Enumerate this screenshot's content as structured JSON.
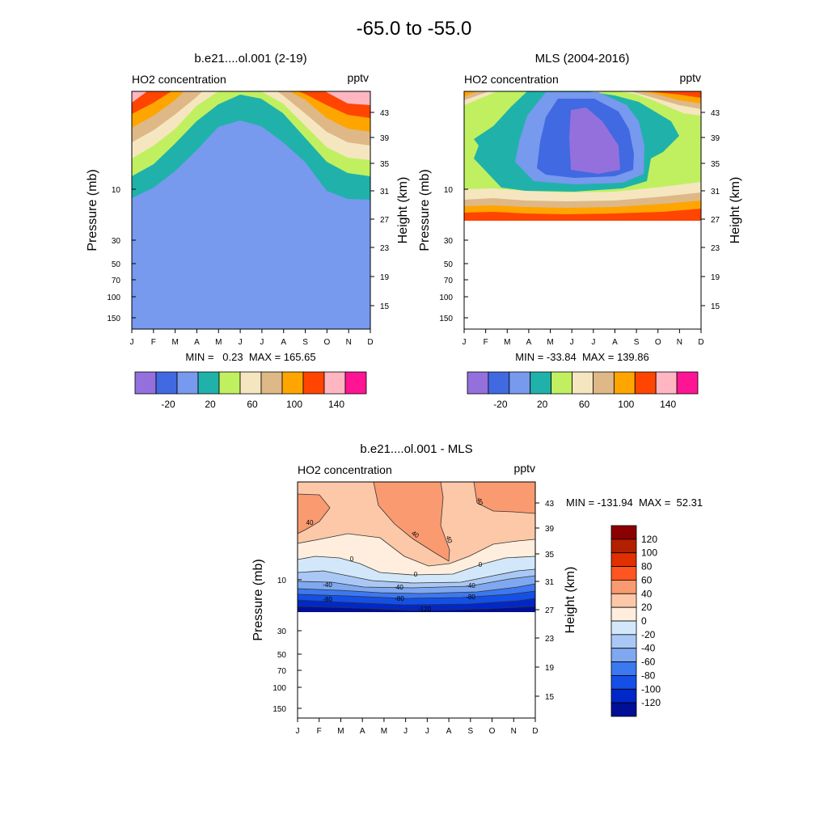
{
  "figure": {
    "title": "-65.0 to -55.0"
  },
  "common": {
    "field_label": "HO2 concentration",
    "units": "pptv",
    "ylabel_left": "Pressure (mb)",
    "ylabel_right": "Height (km)",
    "months": [
      "J",
      "F",
      "M",
      "A",
      "M",
      "J",
      "J",
      "A",
      "S",
      "O",
      "N",
      "D"
    ],
    "pressure_ticks": [
      "10",
      "30",
      "50",
      "70",
      "100",
      "150"
    ],
    "height_ticks": [
      "43",
      "39",
      "35",
      "31",
      "27",
      "23",
      "19",
      "15"
    ]
  },
  "chart_data": [
    {
      "type": "heatmap",
      "title": "b.e21....ol.001 (2-19)",
      "stats": "MIN =   0.23  MAX = 165.65",
      "fill_colors": [
        "#9370db",
        "#4169e1",
        "#7799ee",
        "#20b2aa",
        "#c0f060",
        "#f5e6c0",
        "#deb887",
        "#ffa500",
        "#ff4500",
        "#ffb6c1",
        "#ff1493"
      ],
      "colorbar_labels": [
        "-20",
        "20",
        "60",
        "100",
        "140"
      ],
      "contour_levels_filled": [
        20,
        40,
        60,
        80,
        100,
        120,
        140,
        160
      ],
      "bottom_level_by_month": [
        11.5,
        11,
        8.3,
        6,
        4.2,
        3.2,
        3.6,
        5,
        6.8,
        9.5,
        10.6,
        10.8
      ]
    },
    {
      "type": "heatmap",
      "title": "MLS (2004-2016)",
      "stats": "MIN = -33.84  MAX = 139.86",
      "fill_colors": [
        "#9370db",
        "#4169e1",
        "#7799ee",
        "#20b2aa",
        "#c0f060",
        "#f5e6c0",
        "#deb887",
        "#ffa500",
        "#ff4500",
        "#ffb6c1",
        "#ff1493"
      ],
      "colorbar_labels": [
        "-20",
        "20",
        "60",
        "100",
        "140"
      ],
      "data_bottom_pressure": 17
    },
    {
      "type": "heatmap",
      "title": "b.e21....ol.001 - MLS",
      "stats": "MIN = -131.94  MAX =  52.31",
      "fill_colors": [
        "#8b0000",
        "#b22000",
        "#e03000",
        "#ff5520",
        "#fa9a70",
        "#fdc8a8",
        "#ffeedd",
        "#d2e8fa",
        "#aac8f5",
        "#7fa8f0",
        "#3c78f0",
        "#1450e6",
        "#0028c8",
        "#000f96"
      ],
      "colorbar_labels": [
        "120",
        "100",
        "80",
        "60",
        "40",
        "20",
        "0",
        "-20",
        "-40",
        "-60",
        "-80",
        "-100",
        "-120"
      ],
      "contour_labels": [
        "40",
        "40",
        "40",
        "40",
        "0",
        "0",
        "0",
        "-40",
        "-40",
        "-40",
        "-80",
        "-80",
        "-80",
        "-120"
      ],
      "data_bottom_pressure": 17
    }
  ]
}
